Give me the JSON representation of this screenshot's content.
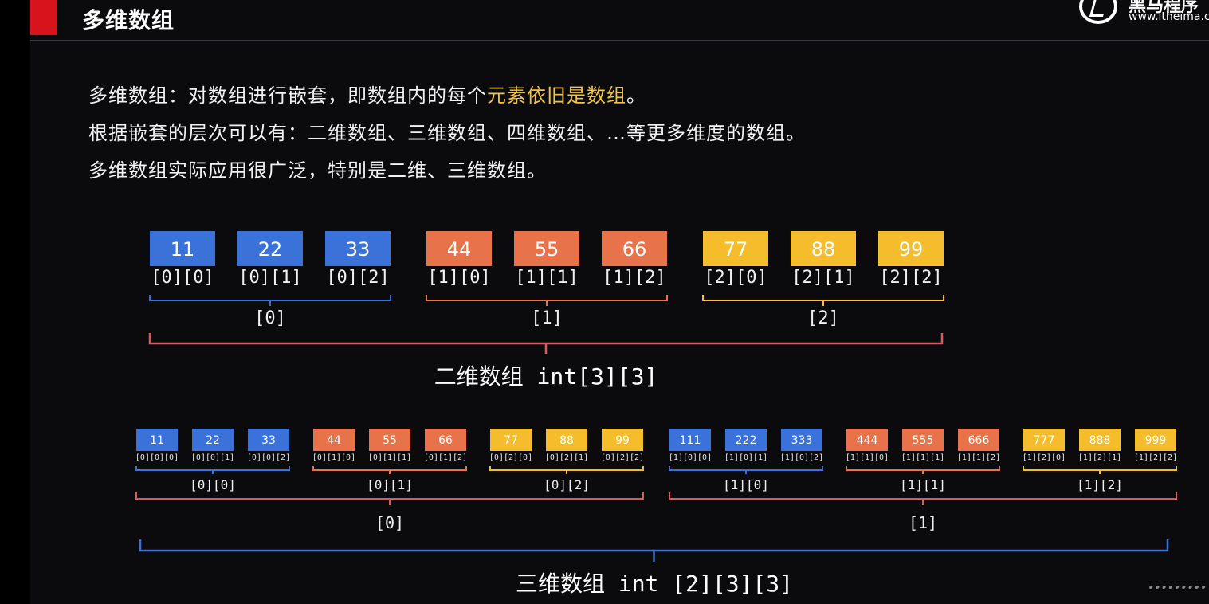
{
  "header": {
    "title": "多维数组",
    "logo_name": "黑马程序",
    "logo_url": "www.itheima.c"
  },
  "intro": {
    "line1_prefix": "多维数组：对数组进行嵌套，即数组内的每个",
    "line1_highlight": "元素依旧是数组",
    "line1_suffix": "。",
    "line2": "根据嵌套的层次可以有：二维数组、三维数组、四维数组、…等更多维度的数组。",
    "line3": "多维数组实际应用很广泛，特别是二维、三维数组。"
  },
  "colors": {
    "blue": "#3b72d9",
    "orange": "#e8734a",
    "yellow": "#f5bd2c",
    "pink": "#e0575e"
  },
  "two_d": {
    "caption": "二维数组 int[3][3]",
    "groups": [
      {
        "label": "[0]",
        "color": "blue",
        "cells": [
          {
            "value": "11",
            "index": "[0][0]"
          },
          {
            "value": "22",
            "index": "[0][1]"
          },
          {
            "value": "33",
            "index": "[0][2]"
          }
        ]
      },
      {
        "label": "[1]",
        "color": "orange",
        "cells": [
          {
            "value": "44",
            "index": "[1][0]"
          },
          {
            "value": "55",
            "index": "[1][1]"
          },
          {
            "value": "66",
            "index": "[1][2]"
          }
        ]
      },
      {
        "label": "[2]",
        "color": "yellow",
        "cells": [
          {
            "value": "77",
            "index": "[2][0]"
          },
          {
            "value": "88",
            "index": "[2][1]"
          },
          {
            "value": "99",
            "index": "[2][2]"
          }
        ]
      }
    ]
  },
  "three_d": {
    "caption": "三维数组 int [2][3][3]",
    "blocks": [
      {
        "label": "[0]",
        "groups": [
          {
            "label": "[0][0]",
            "color": "blue",
            "cells": [
              {
                "value": "11",
                "index": "[0][0][0]"
              },
              {
                "value": "22",
                "index": "[0][0][1]"
              },
              {
                "value": "33",
                "index": "[0][0][2]"
              }
            ]
          },
          {
            "label": "[0][1]",
            "color": "orange",
            "cells": [
              {
                "value": "44",
                "index": "[0][1][0]"
              },
              {
                "value": "55",
                "index": "[0][1][1]"
              },
              {
                "value": "66",
                "index": "[0][1][2]"
              }
            ]
          },
          {
            "label": "[0][2]",
            "color": "yellow",
            "cells": [
              {
                "value": "77",
                "index": "[0][2][0]"
              },
              {
                "value": "88",
                "index": "[0][2][1]"
              },
              {
                "value": "99",
                "index": "[0][2][2]"
              }
            ]
          }
        ]
      },
      {
        "label": "[1]",
        "groups": [
          {
            "label": "[1][0]",
            "color": "blue",
            "cells": [
              {
                "value": "111",
                "index": "[1][0][0]"
              },
              {
                "value": "222",
                "index": "[1][0][1]"
              },
              {
                "value": "333",
                "index": "[1][0][2]"
              }
            ]
          },
          {
            "label": "[1][1]",
            "color": "orange",
            "cells": [
              {
                "value": "444",
                "index": "[1][1][0]"
              },
              {
                "value": "555",
                "index": "[1][1][1]"
              },
              {
                "value": "666",
                "index": "[1][1][2]"
              }
            ]
          },
          {
            "label": "[1][2]",
            "color": "yellow",
            "cells": [
              {
                "value": "777",
                "index": "[1][2][0]"
              },
              {
                "value": "888",
                "index": "[1][2][1]"
              },
              {
                "value": "999",
                "index": "[1][2][2]"
              }
            ]
          }
        ]
      }
    ]
  }
}
